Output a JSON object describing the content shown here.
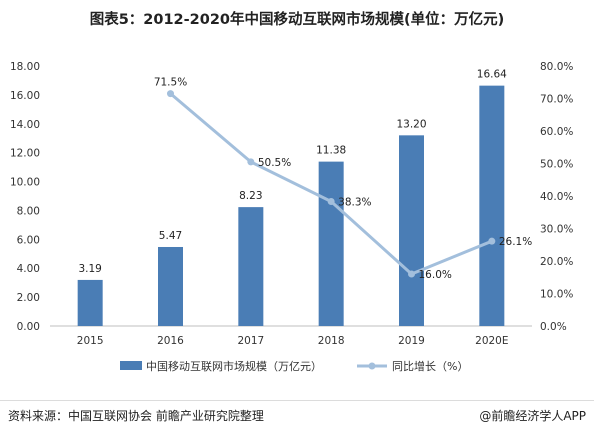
{
  "chart_data": {
    "type": "bar+line",
    "title": "图表5：2012-2020年中国移动互联网市场规模(单位：万亿元)",
    "categories": [
      "2015",
      "2016",
      "2017",
      "2018",
      "2019",
      "2020E"
    ],
    "series": [
      {
        "name": "中国移动互联网市场规模（万亿元）",
        "type": "bar",
        "axis": "left",
        "color": "#4a7db5",
        "values": [
          3.19,
          5.47,
          8.23,
          11.38,
          13.2,
          16.64
        ],
        "labels": [
          "3.19",
          "5.47",
          "8.23",
          "11.38",
          "13.20",
          "16.64"
        ]
      },
      {
        "name": "同比增长（%）",
        "type": "line",
        "axis": "right",
        "color": "#a3bfdc",
        "values": [
          null,
          71.5,
          50.5,
          38.3,
          16.0,
          26.1
        ],
        "labels": [
          "",
          "71.5%",
          "50.5%",
          "38.3%",
          "16.0%",
          "26.1%"
        ]
      }
    ],
    "y_left": {
      "range": [
        0,
        18
      ],
      "ticks": [
        "0.00",
        "2.00",
        "4.00",
        "6.00",
        "8.00",
        "10.00",
        "12.00",
        "14.00",
        "16.00",
        "18.00"
      ]
    },
    "y_right": {
      "range": [
        0,
        80
      ],
      "ticks": [
        "0.0%",
        "10.0%",
        "20.0%",
        "30.0%",
        "40.0%",
        "50.0%",
        "60.0%",
        "70.0%",
        "80.0%"
      ]
    },
    "grid": false,
    "legend": "bottom"
  },
  "footer": {
    "source": "资料来源：中国互联网协会 前瞻产业研究院整理",
    "brand": "@前瞻经济学人APP"
  }
}
